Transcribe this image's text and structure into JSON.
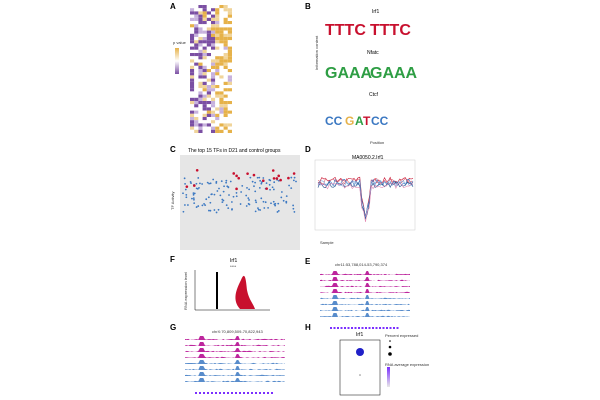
{
  "panels": {
    "a": {
      "letter": "A",
      "legend_title": "p value"
    },
    "b": {
      "letter": "B",
      "motifs": [
        "Irf1",
        "Nfatc",
        "Ctcf"
      ],
      "ylabel": "Information content",
      "xlabel": "Position"
    },
    "c": {
      "letter": "C",
      "title": "The top 15 TFs in D21 and control groups",
      "ylabel": "TF Activity"
    },
    "d": {
      "letter": "D",
      "title": "MA0050.2.Irf1",
      "legend_title": "Sample"
    },
    "e": {
      "letter": "E",
      "locus": "chr11:53,788,014-53,790,374"
    },
    "f": {
      "letter": "F",
      "title": "Irf1",
      "signif": "****",
      "ylabel": "RNA expression level"
    },
    "g": {
      "letter": "G",
      "locus": "chrX:70,809,509-70,822,943"
    },
    "h": {
      "letter": "H",
      "title": "Irf1",
      "legend_size_title": "Percent expressed",
      "legend_color_title": "RNA average expression"
    }
  },
  "colors": {
    "purple": "#7b4fa3",
    "gold": "#e6b24a",
    "red": "#c8102e",
    "blue": "#3b78c2",
    "magenta": "#b2008c",
    "pink": "#e48ab2"
  }
}
